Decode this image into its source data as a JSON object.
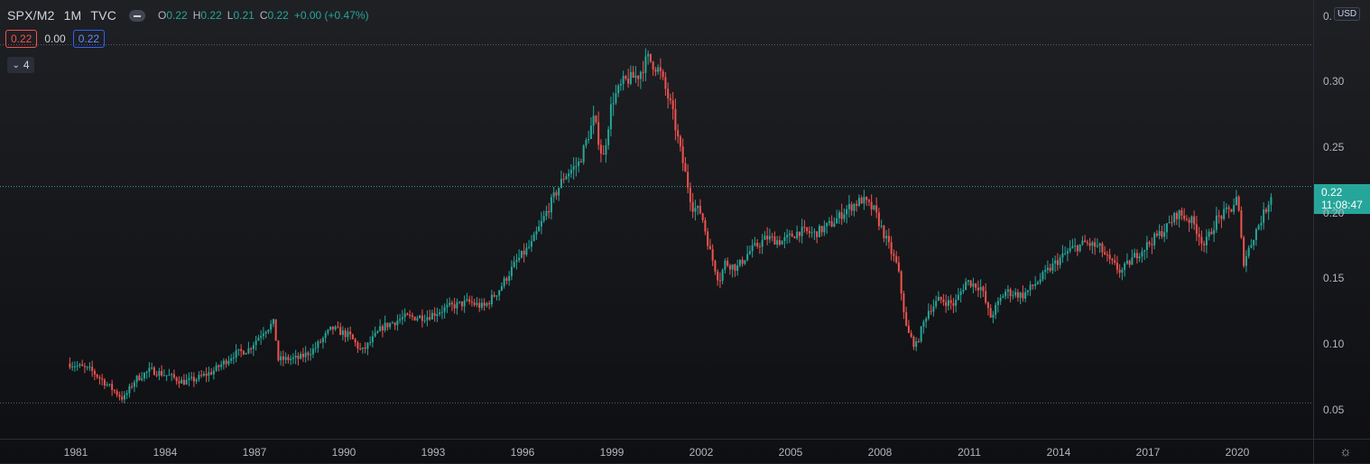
{
  "legend": {
    "symbol": "SPX/M2",
    "interval": "1M",
    "source": "TVC",
    "open_label": "O",
    "open": "0.22",
    "high_label": "H",
    "high": "0.22",
    "low_label": "L",
    "low": "0.21",
    "close_label": "C",
    "close": "0.22",
    "change": "+0.00 (+0.47%)"
  },
  "value_boxes": {
    "left": "0.22",
    "middle": "0.00",
    "right": "0.22"
  },
  "indicator_toggle": {
    "count": "4"
  },
  "price_axis": {
    "currency": "USD",
    "last_price": "0.22",
    "countdown": "11:08:47"
  },
  "colors": {
    "up": "#26a69a",
    "down": "#ef5350",
    "background": "#131418",
    "axis_text": "#b2b5be"
  },
  "icons": {
    "eye": "eye-icon",
    "chevron": "chevron-down-icon",
    "settings": "gear-icon"
  },
  "chart_data": {
    "type": "candlestick",
    "title": "SPX/M2 · 1M · TVC",
    "y_ticks": [
      "0.",
      "0.30",
      "0.25",
      "0.20",
      "0.15",
      "0.10",
      "0.05"
    ],
    "x_ticks": [
      "1981",
      "1984",
      "1987",
      "1990",
      "1993",
      "1996",
      "1999",
      "2002",
      "2005",
      "2008",
      "2011",
      "2014",
      "2017",
      "2020"
    ],
    "ylim": [
      0.029,
      0.364
    ],
    "reference_lines": [
      0.328,
      0.22,
      0.055
    ],
    "series": {
      "x": [
        1980.8,
        1981.5,
        1982.0,
        1982.6,
        1983.0,
        1983.5,
        1984.1,
        1984.6,
        1985.0,
        1985.6,
        1986.3,
        1986.8,
        1987.3,
        1987.65,
        1987.8,
        1988.5,
        1989.0,
        1989.6,
        1990.2,
        1990.6,
        1990.8,
        1991.3,
        1992.0,
        1992.8,
        1993.5,
        1994.2,
        1994.7,
        1995.2,
        1995.8,
        1996.3,
        1996.9,
        1997.4,
        1997.9,
        1998.4,
        1998.7,
        1999.0,
        1999.4,
        1999.9,
        2000.2,
        2000.6,
        2001.0,
        2001.3,
        2001.7,
        2002.0,
        2002.3,
        2002.6,
        2002.8,
        2003.2,
        2003.6,
        2004.2,
        2004.7,
        2005.3,
        2005.8,
        2006.4,
        2006.9,
        2007.4,
        2007.8,
        2008.2,
        2008.6,
        2008.9,
        2009.2,
        2009.6,
        2010.0,
        2010.5,
        2010.9,
        2011.4,
        2011.7,
        2012.2,
        2012.8,
        2013.4,
        2013.9,
        2014.4,
        2014.9,
        2015.4,
        2015.7,
        2016.1,
        2016.6,
        2017.1,
        2017.6,
        2018.0,
        2018.5,
        2018.9,
        2019.3,
        2019.8,
        2020.0,
        2020.2,
        2020.6,
        2021.0,
        2021.2
      ],
      "y": [
        0.085,
        0.08,
        0.07,
        0.058,
        0.073,
        0.08,
        0.076,
        0.071,
        0.073,
        0.079,
        0.092,
        0.096,
        0.11,
        0.116,
        0.088,
        0.089,
        0.096,
        0.112,
        0.106,
        0.094,
        0.099,
        0.113,
        0.12,
        0.121,
        0.128,
        0.132,
        0.128,
        0.141,
        0.163,
        0.176,
        0.205,
        0.228,
        0.238,
        0.272,
        0.24,
        0.285,
        0.3,
        0.305,
        0.318,
        0.308,
        0.28,
        0.247,
        0.205,
        0.2,
        0.17,
        0.148,
        0.162,
        0.158,
        0.17,
        0.181,
        0.178,
        0.186,
        0.184,
        0.192,
        0.203,
        0.21,
        0.202,
        0.18,
        0.158,
        0.11,
        0.098,
        0.125,
        0.134,
        0.13,
        0.148,
        0.143,
        0.12,
        0.14,
        0.137,
        0.15,
        0.162,
        0.172,
        0.177,
        0.173,
        0.163,
        0.155,
        0.168,
        0.178,
        0.188,
        0.2,
        0.193,
        0.175,
        0.195,
        0.203,
        0.212,
        0.162,
        0.185,
        0.205,
        0.219
      ]
    }
  }
}
